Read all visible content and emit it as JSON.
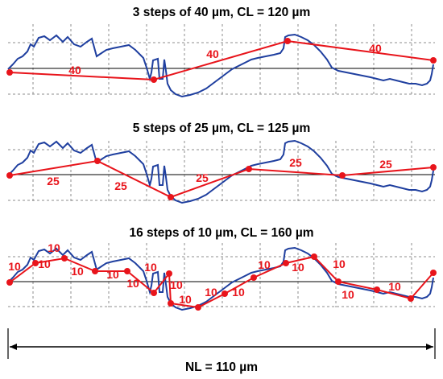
{
  "panels": [
    {
      "title": "3 steps of 40 µm, CL = 120 µm",
      "step_labels": [
        "40",
        "40",
        "40"
      ]
    },
    {
      "title": "5 steps of 25 µm, CL = 125 µm",
      "step_labels": [
        "25",
        "25",
        "25",
        "25",
        "25"
      ]
    },
    {
      "title": "16 steps of 10 µm, CL = 160 µm",
      "step_labels": [
        "10",
        "10",
        "10",
        "10",
        "10",
        "10",
        "10",
        "10",
        "10",
        "10",
        "10",
        "10",
        "10",
        "10",
        "10",
        "10"
      ]
    }
  ],
  "footer": {
    "nominal_length_label": "NL = 110 µm"
  },
  "colors": {
    "profile": "#1f3f9f",
    "steps": "#e8141b",
    "grid": "#8c8c8c",
    "baseline": "#000000"
  }
}
